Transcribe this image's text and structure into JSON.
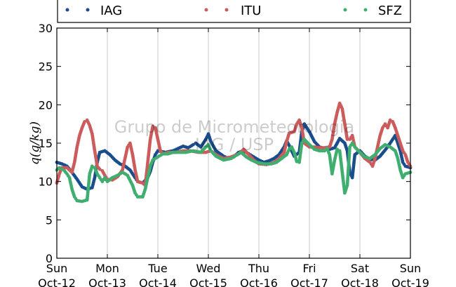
{
  "chart_data": {
    "type": "scatter",
    "ylabel": "q(g/kg)",
    "ylim": [
      0,
      30
    ],
    "yticks": [
      0,
      5,
      10,
      15,
      20,
      25,
      30
    ],
    "xlim": [
      0,
      7
    ],
    "grid": "vertical",
    "legend_position": "top",
    "watermark": [
      "Grupo de Micrometeorologia",
      "IAG / USP"
    ],
    "xticks": [
      {
        "day": "Sun",
        "date": "Oct-12"
      },
      {
        "day": "Mon",
        "date": "Oct-13"
      },
      {
        "day": "Tue",
        "date": "Oct-14"
      },
      {
        "day": "Wed",
        "date": "Oct-15"
      },
      {
        "day": "Thu",
        "date": "Oct-16"
      },
      {
        "day": "Fri",
        "date": "Oct-17"
      },
      {
        "day": "Sat",
        "date": "Oct-18"
      },
      {
        "day": "Sun",
        "date": "Oct-19"
      }
    ],
    "series": [
      {
        "name": "IAG",
        "color": "#1a4d8c",
        "points": [
          [
            0.0,
            12.5
          ],
          [
            0.1,
            12.3
          ],
          [
            0.2,
            12.0
          ],
          [
            0.3,
            11.2
          ],
          [
            0.4,
            10.3
          ],
          [
            0.5,
            9.3
          ],
          [
            0.6,
            9.0
          ],
          [
            0.7,
            9.2
          ],
          [
            0.75,
            10.5
          ],
          [
            0.8,
            12.5
          ],
          [
            0.85,
            13.8
          ],
          [
            0.95,
            14.0
          ],
          [
            1.05,
            13.5
          ],
          [
            1.15,
            12.8
          ],
          [
            1.25,
            12.3
          ],
          [
            1.35,
            12.0
          ],
          [
            1.45,
            11.5
          ],
          [
            1.55,
            10.5
          ],
          [
            1.6,
            10.0
          ],
          [
            1.7,
            9.8
          ],
          [
            1.8,
            10.5
          ],
          [
            1.85,
            11.3
          ],
          [
            1.9,
            12.5
          ],
          [
            1.95,
            13.5
          ],
          [
            2.0,
            14.0
          ],
          [
            2.15,
            13.8
          ],
          [
            2.3,
            14.0
          ],
          [
            2.4,
            14.3
          ],
          [
            2.5,
            14.6
          ],
          [
            2.6,
            14.4
          ],
          [
            2.7,
            14.8
          ],
          [
            2.75,
            15.0
          ],
          [
            2.85,
            14.5
          ],
          [
            2.95,
            15.5
          ],
          [
            3.0,
            16.2
          ],
          [
            3.05,
            15.2
          ],
          [
            3.15,
            14.0
          ],
          [
            3.3,
            13.3
          ],
          [
            3.4,
            13.0
          ],
          [
            3.5,
            13.2
          ],
          [
            3.6,
            13.8
          ],
          [
            3.7,
            14.0
          ],
          [
            3.8,
            13.6
          ],
          [
            3.9,
            13.2
          ],
          [
            4.0,
            12.8
          ],
          [
            4.1,
            12.5
          ],
          [
            4.2,
            12.7
          ],
          [
            4.3,
            13.0
          ],
          [
            4.4,
            13.5
          ],
          [
            4.5,
            14.5
          ],
          [
            4.55,
            15.3
          ],
          [
            4.6,
            14.7
          ],
          [
            4.7,
            13.3
          ],
          [
            4.8,
            13.8
          ],
          [
            4.85,
            16.5
          ],
          [
            4.9,
            17.5
          ],
          [
            5.0,
            16.5
          ],
          [
            5.1,
            15.2
          ],
          [
            5.2,
            14.5
          ],
          [
            5.3,
            14.3
          ],
          [
            5.4,
            14.2
          ],
          [
            5.5,
            14.4
          ],
          [
            5.55,
            15.0
          ],
          [
            5.6,
            15.6
          ],
          [
            5.7,
            15.0
          ],
          [
            5.75,
            14.0
          ],
          [
            5.8,
            11.2
          ],
          [
            5.85,
            10.5
          ],
          [
            5.9,
            13.5
          ],
          [
            6.0,
            14.0
          ],
          [
            6.1,
            13.3
          ],
          [
            6.2,
            12.9
          ],
          [
            6.3,
            12.8
          ],
          [
            6.4,
            13.3
          ],
          [
            6.5,
            14.1
          ],
          [
            6.6,
            15.0
          ],
          [
            6.7,
            16.0
          ],
          [
            6.75,
            15.0
          ],
          [
            6.8,
            14.0
          ],
          [
            6.85,
            12.5
          ],
          [
            6.9,
            12.0
          ],
          [
            7.0,
            11.8
          ]
        ]
      },
      {
        "name": "ITU",
        "color": "#cc5c5c",
        "points": [
          [
            0.0,
            9.8
          ],
          [
            0.05,
            11.0
          ],
          [
            0.1,
            11.8
          ],
          [
            0.2,
            11.8
          ],
          [
            0.3,
            11.2
          ],
          [
            0.35,
            12.5
          ],
          [
            0.4,
            14.5
          ],
          [
            0.45,
            16.0
          ],
          [
            0.5,
            17.0
          ],
          [
            0.55,
            17.8
          ],
          [
            0.6,
            18.0
          ],
          [
            0.65,
            17.3
          ],
          [
            0.7,
            16.2
          ],
          [
            0.75,
            14.0
          ],
          [
            0.8,
            12.0
          ],
          [
            0.85,
            11.6
          ],
          [
            0.9,
            11.4
          ],
          [
            0.95,
            10.8
          ],
          [
            1.0,
            10.3
          ],
          [
            1.1,
            10.2
          ],
          [
            1.2,
            10.6
          ],
          [
            1.3,
            11.5
          ],
          [
            1.35,
            13.0
          ],
          [
            1.4,
            14.5
          ],
          [
            1.45,
            15.0
          ],
          [
            1.5,
            13.5
          ],
          [
            1.55,
            11.5
          ],
          [
            1.6,
            10.0
          ],
          [
            1.7,
            9.8
          ],
          [
            1.75,
            9.5
          ],
          [
            1.8,
            12.5
          ],
          [
            1.85,
            15.5
          ],
          [
            1.9,
            17.2
          ],
          [
            1.95,
            17.0
          ],
          [
            2.0,
            15.5
          ],
          [
            2.05,
            14.0
          ],
          [
            2.1,
            13.6
          ],
          [
            2.2,
            13.8
          ],
          [
            2.35,
            13.8
          ],
          [
            2.5,
            14.0
          ],
          [
            2.65,
            14.0
          ],
          [
            2.8,
            13.8
          ],
          [
            2.95,
            13.8
          ],
          [
            3.05,
            14.0
          ],
          [
            3.15,
            13.5
          ],
          [
            3.3,
            13.0
          ],
          [
            3.45,
            13.2
          ],
          [
            3.6,
            13.6
          ],
          [
            3.7,
            14.2
          ],
          [
            3.8,
            13.5
          ],
          [
            3.9,
            12.8
          ],
          [
            4.0,
            12.3
          ],
          [
            4.15,
            12.2
          ],
          [
            4.3,
            12.5
          ],
          [
            4.4,
            13.0
          ],
          [
            4.5,
            13.8
          ],
          [
            4.55,
            15.2
          ],
          [
            4.6,
            16.3
          ],
          [
            4.7,
            16.5
          ],
          [
            4.75,
            17.5
          ],
          [
            4.8,
            18.0
          ],
          [
            4.85,
            17.0
          ],
          [
            4.9,
            15.0
          ],
          [
            5.0,
            14.5
          ],
          [
            5.1,
            14.5
          ],
          [
            5.2,
            14.4
          ],
          [
            5.3,
            14.4
          ],
          [
            5.4,
            14.5
          ],
          [
            5.45,
            15.5
          ],
          [
            5.5,
            17.5
          ],
          [
            5.55,
            19.0
          ],
          [
            5.6,
            20.2
          ],
          [
            5.65,
            19.5
          ],
          [
            5.7,
            17.5
          ],
          [
            5.75,
            15.5
          ],
          [
            5.8,
            15.5
          ],
          [
            5.85,
            16.0
          ],
          [
            5.9,
            14.5
          ],
          [
            6.0,
            13.8
          ],
          [
            6.1,
            13.0
          ],
          [
            6.2,
            12.5
          ],
          [
            6.25,
            12.0
          ],
          [
            6.3,
            13.0
          ],
          [
            6.35,
            14.5
          ],
          [
            6.4,
            16.0
          ],
          [
            6.45,
            17.0
          ],
          [
            6.5,
            17.5
          ],
          [
            6.55,
            17.0
          ],
          [
            6.6,
            18.0
          ],
          [
            6.65,
            17.8
          ],
          [
            6.7,
            17.0
          ],
          [
            6.75,
            16.0
          ],
          [
            6.8,
            15.0
          ],
          [
            6.85,
            14.0
          ],
          [
            6.9,
            13.5
          ],
          [
            6.95,
            12.5
          ],
          [
            7.0,
            12.0
          ]
        ]
      },
      {
        "name": "SFZ",
        "color": "#3fae6f",
        "points": [
          [
            0.0,
            11.5
          ],
          [
            0.05,
            11.8
          ],
          [
            0.1,
            11.6
          ],
          [
            0.15,
            11.4
          ],
          [
            0.2,
            11.0
          ],
          [
            0.25,
            10.5
          ],
          [
            0.3,
            9.0
          ],
          [
            0.35,
            8.0
          ],
          [
            0.4,
            7.5
          ],
          [
            0.5,
            7.4
          ],
          [
            0.6,
            7.6
          ],
          [
            0.65,
            11.0
          ],
          [
            0.7,
            12.0
          ],
          [
            0.75,
            11.8
          ],
          [
            0.8,
            11.0
          ],
          [
            0.85,
            10.5
          ],
          [
            0.9,
            10.0
          ],
          [
            0.95,
            10.5
          ],
          [
            1.0,
            10.0
          ],
          [
            1.1,
            10.5
          ],
          [
            1.2,
            10.8
          ],
          [
            1.3,
            11.2
          ],
          [
            1.4,
            10.8
          ],
          [
            1.5,
            9.5
          ],
          [
            1.55,
            8.5
          ],
          [
            1.6,
            8.0
          ],
          [
            1.7,
            8.0
          ],
          [
            1.75,
            9.0
          ],
          [
            1.8,
            10.5
          ],
          [
            1.85,
            12.0
          ],
          [
            1.9,
            12.8
          ],
          [
            2.0,
            13.2
          ],
          [
            2.1,
            13.6
          ],
          [
            2.2,
            13.6
          ],
          [
            2.3,
            13.8
          ],
          [
            2.4,
            13.8
          ],
          [
            2.55,
            13.8
          ],
          [
            2.7,
            14.0
          ],
          [
            2.85,
            13.8
          ],
          [
            2.95,
            14.5
          ],
          [
            3.0,
            14.8
          ],
          [
            3.05,
            14.0
          ],
          [
            3.15,
            13.3
          ],
          [
            3.3,
            12.8
          ],
          [
            3.45,
            13.0
          ],
          [
            3.55,
            13.4
          ],
          [
            3.65,
            13.8
          ],
          [
            3.75,
            13.2
          ],
          [
            3.85,
            12.8
          ],
          [
            3.95,
            12.5
          ],
          [
            4.1,
            12.3
          ],
          [
            4.25,
            12.3
          ],
          [
            4.35,
            12.5
          ],
          [
            4.45,
            13.0
          ],
          [
            4.55,
            13.5
          ],
          [
            4.6,
            14.2
          ],
          [
            4.65,
            14.5
          ],
          [
            4.7,
            13.8
          ],
          [
            4.75,
            12.6
          ],
          [
            4.8,
            12.5
          ],
          [
            4.85,
            15.0
          ],
          [
            4.9,
            15.5
          ],
          [
            5.0,
            14.8
          ],
          [
            5.1,
            14.2
          ],
          [
            5.2,
            14.0
          ],
          [
            5.3,
            14.0
          ],
          [
            5.35,
            14.3
          ],
          [
            5.4,
            13.5
          ],
          [
            5.45,
            11.0
          ],
          [
            5.5,
            12.8
          ],
          [
            5.55,
            14.2
          ],
          [
            5.6,
            14.0
          ],
          [
            5.7,
            8.5
          ],
          [
            5.75,
            9.5
          ],
          [
            5.8,
            14.5
          ],
          [
            5.85,
            15.0
          ],
          [
            5.9,
            14.5
          ],
          [
            6.0,
            13.8
          ],
          [
            6.1,
            13.2
          ],
          [
            6.2,
            13.0
          ],
          [
            6.3,
            13.5
          ],
          [
            6.4,
            14.3
          ],
          [
            6.5,
            14.8
          ],
          [
            6.6,
            14.5
          ],
          [
            6.7,
            14.0
          ],
          [
            6.75,
            13.0
          ],
          [
            6.8,
            11.5
          ],
          [
            6.85,
            10.5
          ],
          [
            6.9,
            11.0
          ],
          [
            7.0,
            11.2
          ]
        ]
      }
    ]
  }
}
